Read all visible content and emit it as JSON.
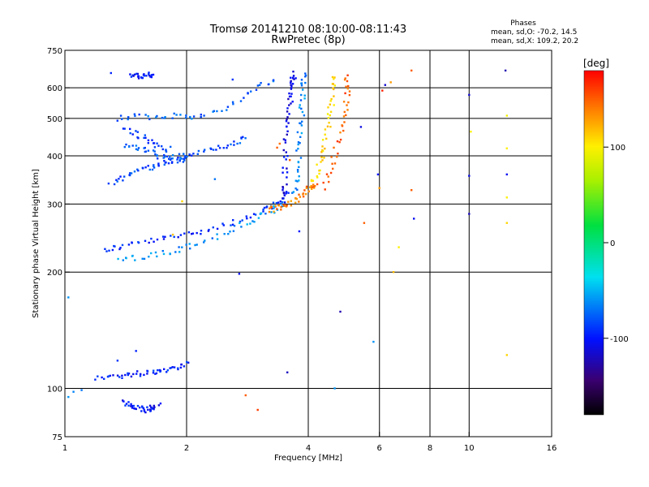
{
  "chart_data": {
    "type": "scatter",
    "title": "Tromsø 20141210 08:10:00-08:11:43",
    "subtitle": "RwPretec (8p)",
    "xlabel": "Frequency [MHz]",
    "ylabel": "Stationary phase Virtual Height [km]",
    "x_scale": "log",
    "y_scale": "log",
    "xlim": [
      1,
      16
    ],
    "ylim": [
      75,
      750
    ],
    "x_ticks": [
      1,
      2,
      4,
      6,
      8,
      10,
      16
    ],
    "y_ticks": [
      75,
      100,
      200,
      300,
      400,
      500,
      600,
      750
    ],
    "x_gridlines": [
      2,
      4,
      6,
      8,
      10
    ],
    "y_gridlines": [
      100,
      200,
      300,
      400,
      500,
      600
    ],
    "grid": true,
    "stats": {
      "header": "Phases",
      "line_o": "mean, sd,O: -70.2, 14.5",
      "line_x": "mean, sd,X: 109.2, 20.2"
    },
    "colorbar": {
      "label": "[deg]",
      "range": [
        -180,
        180
      ],
      "ticks": [
        100,
        0,
        -100
      ],
      "colormap": "rainbow"
    },
    "traces": [
      {
        "name": "",
        "x": [
          1.25,
          1.35,
          1.5,
          1.7,
          1.9,
          2.1,
          2.4,
          2.7,
          3.0,
          3.2,
          3.4,
          3.55
        ],
        "y": [
          228,
          232,
          238,
          242,
          248,
          254,
          262,
          272,
          282,
          292,
          305,
          322
        ],
        "phase": -95
      },
      {
        "name": "",
        "x": [
          1.35,
          1.5,
          1.7,
          1.9,
          2.1,
          2.4,
          2.7,
          3.0,
          3.3,
          3.5
        ],
        "y": [
          215,
          218,
          222,
          228,
          236,
          248,
          262,
          276,
          290,
          300
        ],
        "phase": -62
      },
      {
        "name": "",
        "x": [
          1.35,
          1.5,
          1.7,
          1.9,
          2.1,
          2.4,
          2.7,
          3.0,
          3.3
        ],
        "y": [
          500,
          505,
          500,
          510,
          505,
          520,
          560,
          600,
          630
        ],
        "phase": -75
      },
      {
        "name": "",
        "x": [
          1.4,
          1.5,
          1.6,
          1.7,
          1.8
        ],
        "y": [
          470,
          455,
          440,
          425,
          415
        ],
        "phase": -90
      },
      {
        "name": "",
        "x": [
          1.4,
          1.5,
          1.6,
          1.7,
          1.8,
          1.9,
          2.0,
          2.2,
          2.4,
          2.6,
          2.8
        ],
        "y": [
          430,
          420,
          410,
          400,
          395,
          395,
          400,
          410,
          420,
          430,
          440
        ],
        "phase": -80
      },
      {
        "name": "",
        "x": [
          1.3,
          1.4,
          1.5,
          1.6,
          1.7,
          1.8,
          1.9,
          2.0
        ],
        "y": [
          340,
          350,
          365,
          372,
          378,
          385,
          390,
          395
        ],
        "phase": -85
      },
      {
        "name": "",
        "x": [
          1.45,
          1.5,
          1.55,
          1.6,
          1.65
        ],
        "y": [
          650,
          645,
          640,
          645,
          650
        ],
        "phase": -100
      },
      {
        "name": "",
        "x": [
          1.2,
          1.3,
          1.4,
          1.5,
          1.6,
          1.7,
          1.8,
          1.9,
          2.0
        ],
        "y": [
          107,
          107,
          108,
          109,
          110,
          111,
          112,
          114,
          116
        ],
        "phase": -95
      },
      {
        "name": "",
        "x": [
          1.4,
          1.45,
          1.5,
          1.55,
          1.6,
          1.65,
          1.7
        ],
        "y": [
          92,
          90,
          89,
          88,
          88,
          89,
          90
        ],
        "phase": -100
      },
      {
        "name": "",
        "x": [
          3.45,
          3.5,
          3.5,
          3.5,
          3.55,
          3.6,
          3.6,
          3.6,
          3.65,
          3.7
        ],
        "y": [
          300,
          330,
          370,
          420,
          470,
          520,
          560,
          600,
          630,
          650
        ],
        "phase": -110
      },
      {
        "name": "",
        "x": [
          3.7,
          3.75,
          3.8,
          3.8,
          3.85,
          3.85,
          3.9,
          3.9
        ],
        "y": [
          320,
          350,
          390,
          440,
          490,
          540,
          600,
          650
        ],
        "phase": -65
      },
      {
        "name": "",
        "x": [
          3.2,
          3.3,
          3.45,
          3.6,
          3.8,
          3.95,
          4.05,
          4.15
        ],
        "y": [
          290,
          292,
          296,
          302,
          312,
          322,
          330,
          338
        ],
        "phase": 140
      },
      {
        "name": "",
        "x": [
          4.05,
          4.2,
          4.3,
          4.4,
          4.5,
          4.55,
          4.6,
          4.6
        ],
        "y": [
          340,
          360,
          390,
          430,
          480,
          530,
          590,
          640
        ],
        "phase": 110
      },
      {
        "name": "",
        "x": [
          4.4,
          4.55,
          4.7,
          4.85,
          4.95,
          5.0,
          5.0
        ],
        "y": [
          330,
          370,
          420,
          470,
          530,
          590,
          640
        ],
        "phase": 150
      }
    ],
    "scattered_points": [
      {
        "x": 1.02,
        "y": 172,
        "phase": -60
      },
      {
        "x": 1.02,
        "y": 95,
        "phase": -60
      },
      {
        "x": 1.05,
        "y": 98,
        "phase": -65
      },
      {
        "x": 1.1,
        "y": 99,
        "phase": -70
      },
      {
        "x": 1.5,
        "y": 125,
        "phase": -95
      },
      {
        "x": 1.35,
        "y": 118,
        "phase": -90
      },
      {
        "x": 1.3,
        "y": 655,
        "phase": -95
      },
      {
        "x": 1.95,
        "y": 305,
        "phase": 110
      },
      {
        "x": 1.85,
        "y": 250,
        "phase": 115
      },
      {
        "x": 2.35,
        "y": 348,
        "phase": -70
      },
      {
        "x": 2.6,
        "y": 630,
        "phase": -90
      },
      {
        "x": 2.7,
        "y": 198,
        "phase": -105
      },
      {
        "x": 2.8,
        "y": 96,
        "phase": 150
      },
      {
        "x": 3.0,
        "y": 88,
        "phase": 160
      },
      {
        "x": 3.35,
        "y": 420,
        "phase": 150
      },
      {
        "x": 3.4,
        "y": 430,
        "phase": 145
      },
      {
        "x": 3.6,
        "y": 390,
        "phase": 150
      },
      {
        "x": 3.8,
        "y": 255,
        "phase": -100
      },
      {
        "x": 3.55,
        "y": 110,
        "phase": -120
      },
      {
        "x": 4.8,
        "y": 158,
        "phase": -125
      },
      {
        "x": 4.65,
        "y": 100,
        "phase": -60
      },
      {
        "x": 5.4,
        "y": 475,
        "phase": -110
      },
      {
        "x": 5.5,
        "y": 268,
        "phase": 150
      },
      {
        "x": 5.8,
        "y": 132,
        "phase": -60
      },
      {
        "x": 5.95,
        "y": 358,
        "phase": -100
      },
      {
        "x": 6.0,
        "y": 330,
        "phase": 130
      },
      {
        "x": 6.1,
        "y": 590,
        "phase": 170
      },
      {
        "x": 6.2,
        "y": 610,
        "phase": -115
      },
      {
        "x": 6.4,
        "y": 620,
        "phase": 130
      },
      {
        "x": 6.5,
        "y": 200,
        "phase": 120
      },
      {
        "x": 6.7,
        "y": 232,
        "phase": 100
      },
      {
        "x": 7.2,
        "y": 665,
        "phase": 150
      },
      {
        "x": 7.2,
        "y": 326,
        "phase": 150
      },
      {
        "x": 7.3,
        "y": 275,
        "phase": -105
      },
      {
        "x": 10.0,
        "y": 575,
        "phase": -115
      },
      {
        "x": 10.0,
        "y": 355,
        "phase": -110
      },
      {
        "x": 10.0,
        "y": 283,
        "phase": -120
      },
      {
        "x": 10.1,
        "y": 462,
        "phase": 100
      },
      {
        "x": 12.3,
        "y": 665,
        "phase": -125
      },
      {
        "x": 12.4,
        "y": 508,
        "phase": 95
      },
      {
        "x": 12.4,
        "y": 418,
        "phase": 100
      },
      {
        "x": 12.4,
        "y": 358,
        "phase": -105
      },
      {
        "x": 12.4,
        "y": 312,
        "phase": 100
      },
      {
        "x": 12.4,
        "y": 268,
        "phase": 110
      },
      {
        "x": 12.4,
        "y": 122,
        "phase": 110
      }
    ]
  }
}
